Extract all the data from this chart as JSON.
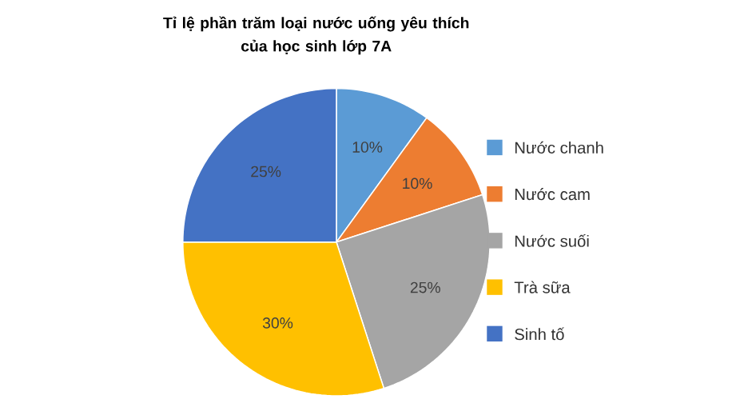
{
  "chart_data": {
    "type": "pie",
    "title": "Tỉ lệ phần trăm loại nước uống yêu thích\ncủa học sinh lớp 7A",
    "categories": [
      "Nước chanh",
      "Nước cam",
      "Nước suối",
      "Trà sữa",
      "Sinh tố"
    ],
    "values": [
      10,
      10,
      25,
      30,
      25
    ],
    "colors": [
      "#5b9bd5",
      "#ed7d31",
      "#a5a5a5",
      "#ffc000",
      "#4472c4"
    ],
    "value_labels": [
      "10%",
      "10%",
      "25%",
      "30%",
      "25%"
    ],
    "legend": "right"
  }
}
